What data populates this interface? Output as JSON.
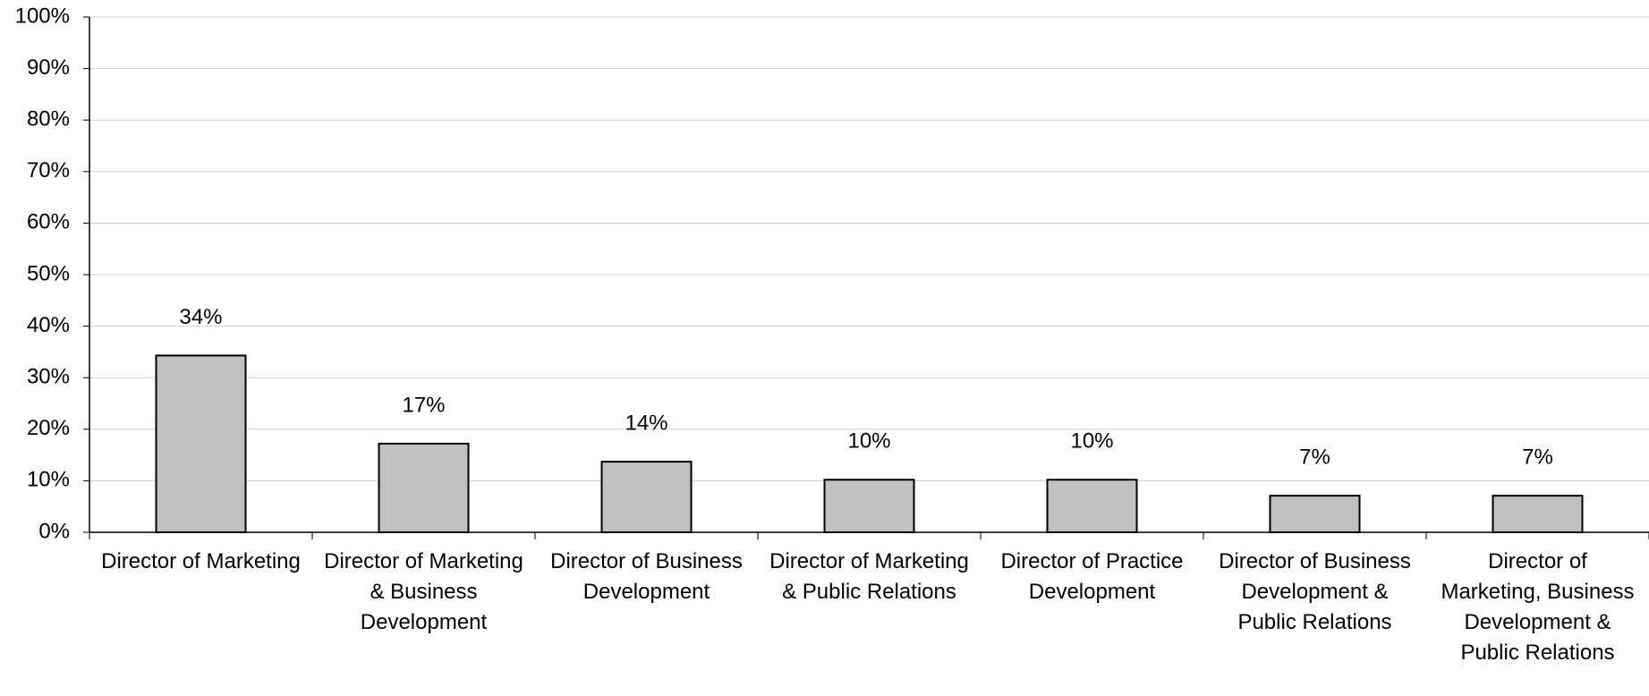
{
  "chart_data": {
    "type": "bar",
    "categories": [
      "Director of Marketing",
      "Director of Marketing & Business Development",
      "Director of Business Development",
      "Director of Marketing & Public Relations",
      "Director of Practice Development",
      "Director of Business Development & Public Relations",
      "Director of Marketing, Business Development & Public Relations"
    ],
    "values": [
      34.3,
      17.2,
      13.7,
      10.2,
      10.2,
      7.1,
      7.1
    ],
    "value_labels": [
      "34%",
      "17%",
      "14%",
      "10%",
      "10%",
      "7%",
      "7%"
    ],
    "color": "#c0c0c0",
    "ylim": [
      0,
      100
    ],
    "yticks": [
      {
        "value": 0,
        "label": "0%"
      },
      {
        "value": 10,
        "label": "10%"
      },
      {
        "value": 20,
        "label": "20%"
      },
      {
        "value": 30,
        "label": "30%"
      },
      {
        "value": 40,
        "label": "40%"
      },
      {
        "value": 50,
        "label": "50%"
      },
      {
        "value": 60,
        "label": "60%"
      },
      {
        "value": 70,
        "label": "70%"
      },
      {
        "value": 80,
        "label": "80%"
      },
      {
        "value": 90,
        "label": "90%"
      },
      {
        "value": 100,
        "label": "100%"
      }
    ],
    "grid": true
  }
}
